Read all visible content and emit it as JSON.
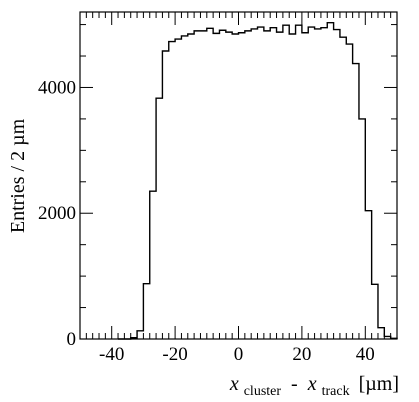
{
  "chart_data": {
    "type": "bar",
    "style": "step-histogram",
    "bin_width": 2,
    "xlim": [
      -50,
      50
    ],
    "ylim": [
      0,
      5200
    ],
    "x_ticks": [
      -40,
      -20,
      0,
      20,
      40
    ],
    "y_ticks": [
      0,
      2000,
      4000
    ],
    "grid": false,
    "legend": "none",
    "line_color": "#000000",
    "ylabel": "Entries / 2 µm",
    "xlabel": {
      "var": "x",
      "sub1": "cluster",
      "sep": " - ",
      "sub2": "track",
      "unit": "[µm]"
    },
    "bin_edges_start": -34,
    "values": [
      20,
      130,
      880,
      2350,
      3830,
      4580,
      4730,
      4770,
      4820,
      4850,
      4900,
      4900,
      4940,
      4860,
      4910,
      4880,
      4850,
      4870,
      4900,
      4930,
      4960,
      4900,
      4950,
      4880,
      4990,
      4850,
      4990,
      4870,
      4960,
      4930,
      4950,
      5030,
      4920,
      4800,
      4690,
      4380,
      3500,
      2040,
      870,
      180,
      40,
      10
    ]
  }
}
